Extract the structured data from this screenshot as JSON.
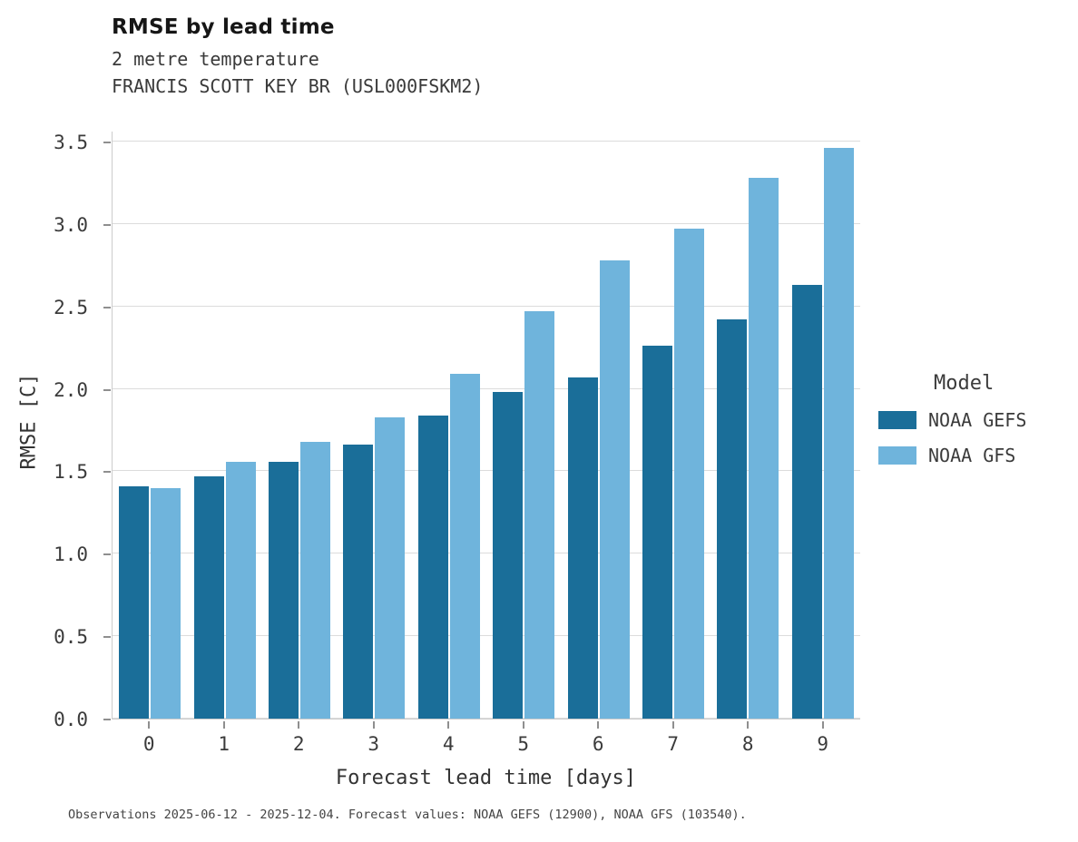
{
  "title": "RMSE by lead time",
  "subtitle1": "2 metre temperature",
  "subtitle2": "FRANCIS SCOTT KEY BR (USL000FSKM2)",
  "caption": "Observations 2025-06-12 - 2025-12-04. Forecast values: NOAA GEFS (12900), NOAA GFS (103540).",
  "legend": {
    "title": "Model"
  },
  "chart_data": {
    "type": "bar",
    "title": "RMSE by lead time",
    "subtitle": "2 metre temperature — FRANCIS SCOTT KEY BR (USL000FSKM2)",
    "xlabel": "Forecast lead time [days]",
    "ylabel": "RMSE [C]",
    "categories": [
      "0",
      "1",
      "2",
      "3",
      "4",
      "5",
      "6",
      "7",
      "8",
      "9"
    ],
    "series": [
      {
        "name": "NOAA GEFS",
        "color": "#1a6e99",
        "values": [
          1.41,
          1.47,
          1.56,
          1.66,
          1.84,
          1.98,
          2.07,
          2.26,
          2.42,
          2.63
        ]
      },
      {
        "name": "NOAA GFS",
        "color": "#6fb4dc",
        "values": [
          1.4,
          1.56,
          1.68,
          1.83,
          2.09,
          2.47,
          2.78,
          2.97,
          3.28,
          3.46
        ]
      }
    ],
    "ylim": [
      0,
      3.5
    ],
    "yticks": [
      "0.0",
      "0.5",
      "1.0",
      "1.5",
      "2.0",
      "2.5",
      "3.0",
      "3.5"
    ],
    "grid": true,
    "legend_position": "right",
    "legend_title": "Model"
  }
}
